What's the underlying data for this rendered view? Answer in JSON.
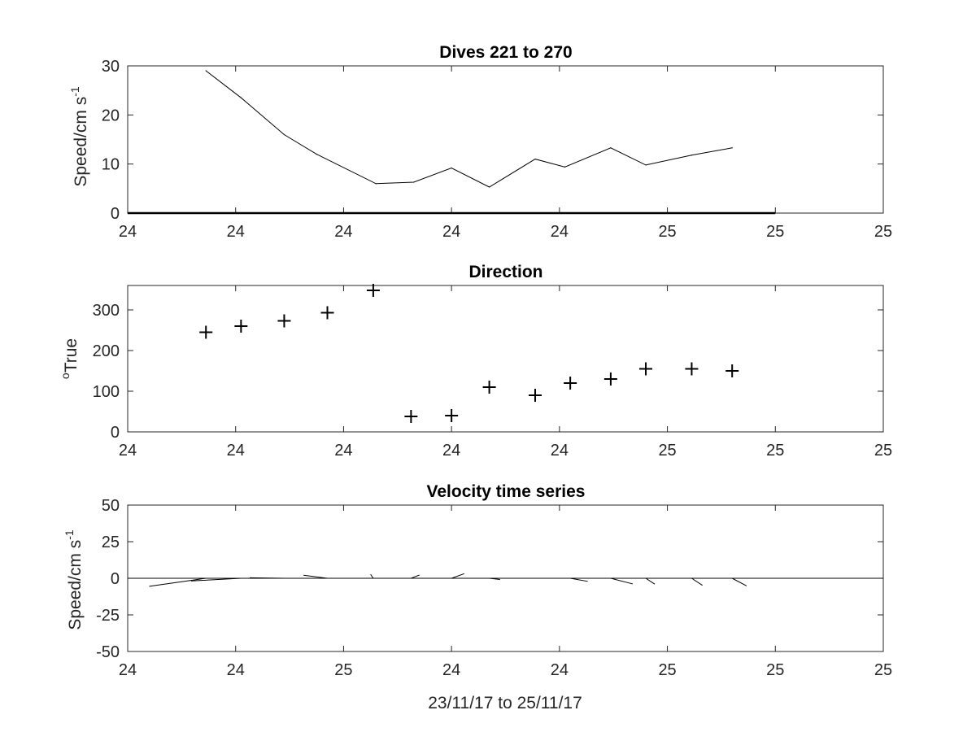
{
  "figure": {
    "xlabel": "23/11/17 to 25/11/17",
    "line_color": "#000000",
    "axes_color": "#262626",
    "background": "#ffffff"
  },
  "chart_data": [
    {
      "type": "line",
      "title": "Dives 221 to 270",
      "ylabel": "Speed/cm s",
      "ylabel_superscript": "-1",
      "xlim": [
        0,
        14
      ],
      "ylim": [
        0,
        30
      ],
      "xticks": [
        0,
        2,
        4,
        6,
        8,
        10,
        12,
        14
      ],
      "xtick_labels": [
        "24",
        "24",
        "24",
        "24",
        "24",
        "25",
        "25",
        "25"
      ],
      "yticks": [
        0,
        10,
        20,
        30
      ],
      "ytick_labels": [
        "0",
        "10",
        "20",
        "30"
      ],
      "grid": false,
      "x": [
        1.45,
        2.1,
        2.9,
        3.5,
        4.6,
        5.3,
        6.0,
        6.7,
        7.55,
        8.1,
        8.95,
        9.6,
        10.45,
        11.2
      ],
      "series": [
        {
          "values": [
            29,
            23.5,
            16,
            12,
            6,
            6.3,
            9.2,
            5.3,
            11,
            9.4,
            13.3,
            9.8,
            11.8,
            13.3
          ]
        }
      ],
      "baseline": {
        "x": [
          0,
          12
        ],
        "y": [
          0,
          0
        ]
      }
    },
    {
      "type": "scatter",
      "title": "Direction",
      "ylabel": "True",
      "ylabel_superscript": "o",
      "marker": "+",
      "xlim": [
        0,
        14
      ],
      "ylim": [
        0,
        360
      ],
      "xticks": [
        0,
        2,
        4,
        6,
        8,
        10,
        12,
        14
      ],
      "xtick_labels": [
        "24",
        "24",
        "24",
        "24",
        "24",
        "25",
        "25",
        "25"
      ],
      "yticks": [
        0,
        100,
        200,
        300
      ],
      "ytick_labels": [
        "0",
        "100",
        "200",
        "300"
      ],
      "grid": false,
      "x": [
        1.45,
        2.1,
        2.9,
        3.7,
        4.55,
        5.25,
        6.0,
        6.7,
        7.55,
        8.2,
        8.95,
        9.6,
        10.45,
        11.2
      ],
      "series": [
        {
          "values": [
            245,
            260,
            273,
            293,
            348,
            38,
            40,
            110,
            90,
            120,
            130,
            155,
            155,
            150
          ]
        }
      ]
    },
    {
      "type": "line",
      "subtype": "vector-stick",
      "title": "Velocity time series",
      "ylabel": "Speed/cm s",
      "ylabel_superscript": "-1",
      "xlim": [
        0,
        14
      ],
      "ylim": [
        -50,
        50
      ],
      "xticks": [
        0,
        2,
        4,
        6,
        8,
        10,
        12,
        14
      ],
      "xtick_labels": [
        "24",
        "24",
        "25",
        "24",
        "24",
        "25",
        "25",
        "25"
      ],
      "yticks": [
        -50,
        -25,
        0,
        25,
        50
      ],
      "ytick_labels": [
        "-50",
        "-25",
        "0",
        "25",
        "50"
      ],
      "grid": false,
      "zero_line": true,
      "x": [
        1.45,
        2.1,
        2.9,
        3.7,
        4.55,
        5.25,
        6.0,
        6.7,
        7.55,
        8.2,
        8.95,
        9.6,
        10.45,
        11.2
      ],
      "speed": [
        29,
        23.5,
        16,
        12,
        6,
        6.3,
        9.2,
        5.3,
        11,
        9.4,
        13.3,
        9.8,
        11.8,
        13.3
      ],
      "direction_deg_true": [
        245,
        260,
        273,
        293,
        348,
        38,
        40,
        110,
        90,
        120,
        130,
        155,
        155,
        150
      ]
    }
  ]
}
